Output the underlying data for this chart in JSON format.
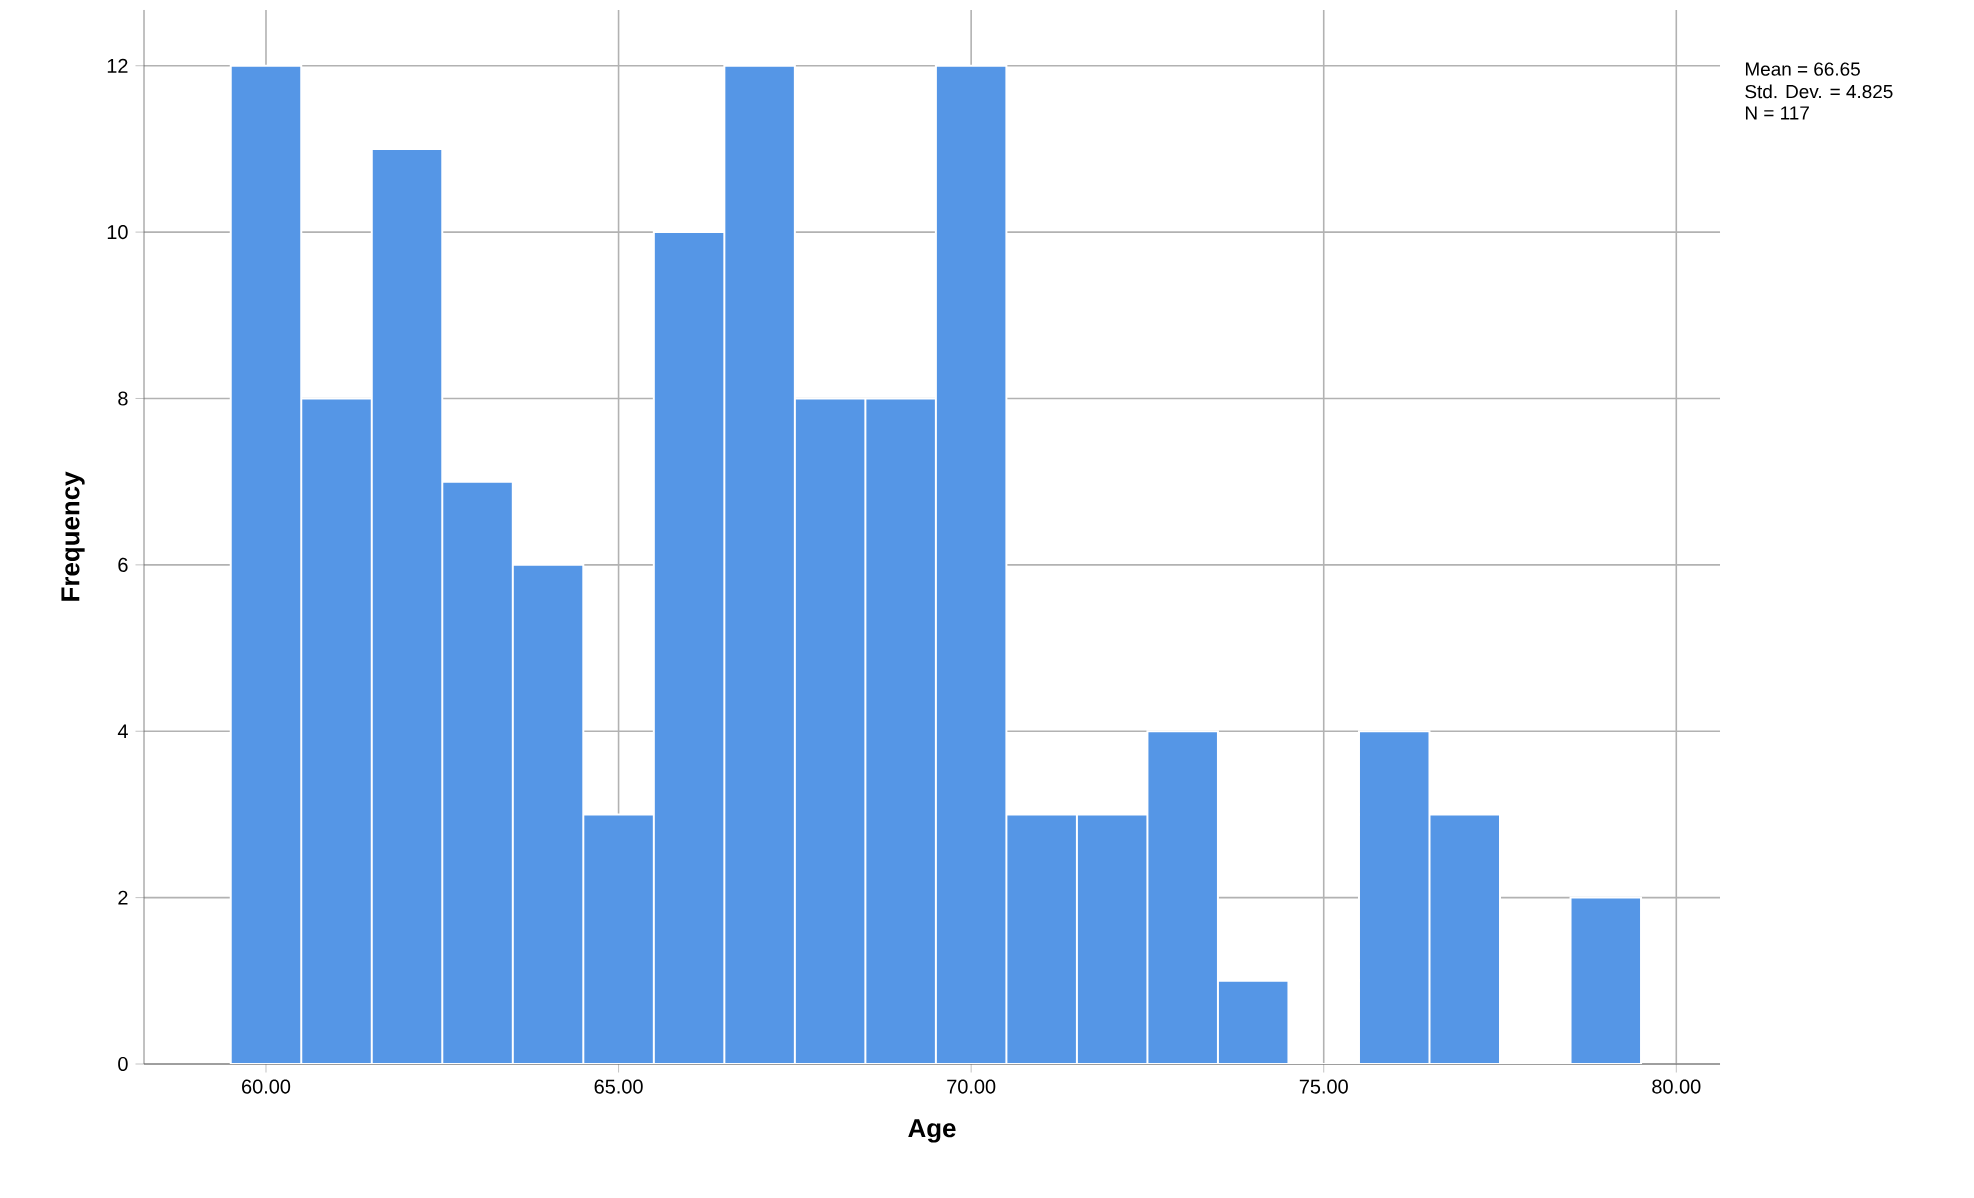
{
  "chart_data": {
    "type": "histogram",
    "xlabel": "Age",
    "ylabel": "Frequency",
    "bins": [
      59.5,
      60.5,
      61.5,
      62.5,
      63.5,
      64.5,
      65.5,
      66.5,
      67.5,
      68.5,
      69.5,
      70.5,
      71.5,
      72.5,
      73.5,
      74.5,
      75.5,
      76.5,
      77.5,
      78.5,
      79.5
    ],
    "values": [
      12,
      8,
      11,
      7,
      6,
      3,
      10,
      12,
      8,
      8,
      12,
      3,
      3,
      4,
      1,
      0,
      4,
      3,
      0,
      2
    ],
    "color": "#5596e6",
    "xlim": [
      58.27,
      80.62
    ],
    "ylim": [
      0,
      12.67
    ],
    "xticks": [
      {
        "value": 60,
        "label": "60.00"
      },
      {
        "value": 65,
        "label": "65.00"
      },
      {
        "value": 70,
        "label": "70.00"
      },
      {
        "value": 75,
        "label": "75.00"
      },
      {
        "value": 80,
        "label": "80.00"
      }
    ],
    "yticks": [
      0,
      2,
      4,
      6,
      8,
      10,
      12
    ],
    "grid": true,
    "annotations": [
      "Mean = 66.65",
      "Std. Dev. = 4.825",
      "N = 117"
    ]
  }
}
